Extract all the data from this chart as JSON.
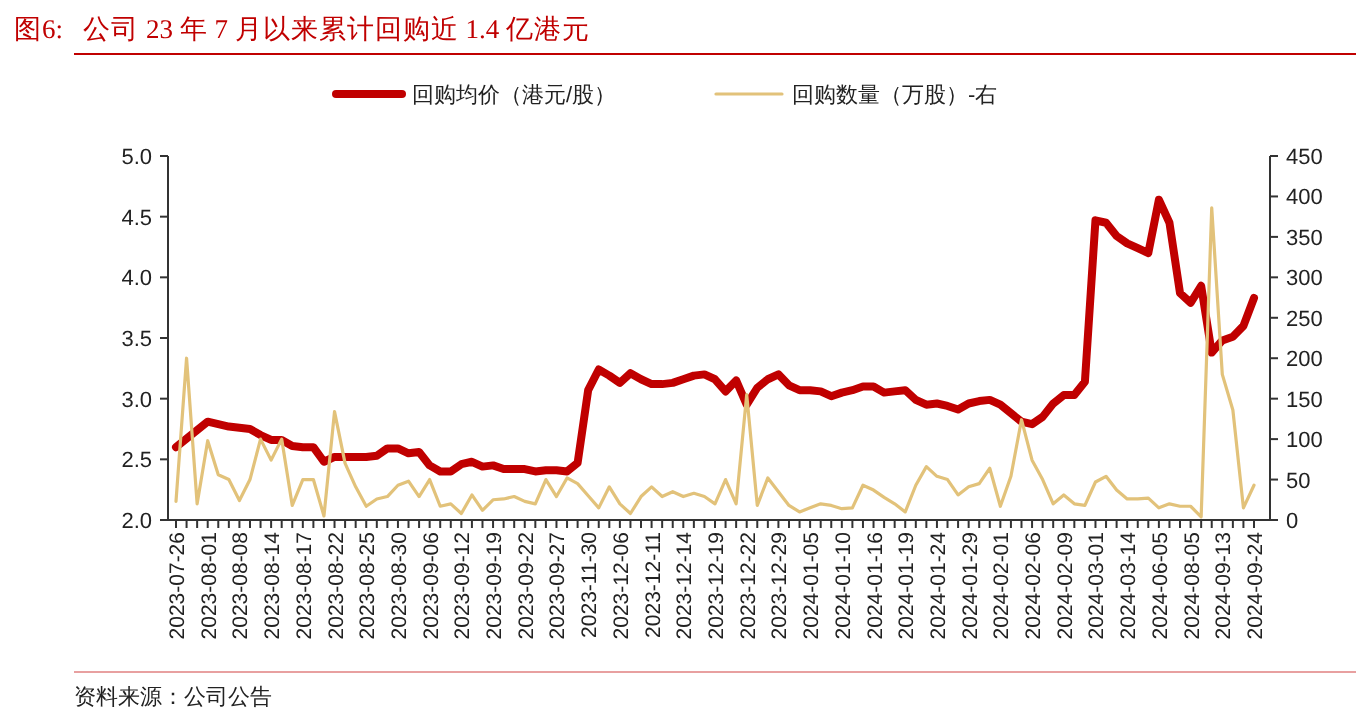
{
  "chart_data": {
    "type": "line",
    "title": "图6:   公司 23 年 7 月以来累计回购近 1.4 亿港元",
    "annotations": [
      "资料来源：公司公告"
    ],
    "categories": [
      "2023-07-26",
      null,
      null,
      "2023-08-01",
      null,
      null,
      "2023-08-08",
      null,
      null,
      "2023-08-14",
      null,
      null,
      "2023-08-17",
      null,
      null,
      "2023-08-22",
      null,
      null,
      "2023-08-25",
      null,
      null,
      "2023-08-30",
      null,
      null,
      "2023-09-06",
      null,
      null,
      "2023-09-12",
      null,
      null,
      "2023-09-19",
      null,
      null,
      "2023-09-22",
      null,
      null,
      "2023-09-27",
      null,
      null,
      "2023-11-30",
      null,
      null,
      "2023-12-06",
      null,
      null,
      "2023-12-11",
      null,
      null,
      "2023-12-14",
      null,
      null,
      "2023-12-19",
      null,
      null,
      "2023-12-22",
      null,
      null,
      "2023-12-29",
      null,
      null,
      "2024-01-05",
      null,
      null,
      "2024-01-10",
      null,
      null,
      "2024-01-16",
      null,
      null,
      "2024-01-19",
      null,
      null,
      "2024-01-24",
      null,
      null,
      "2024-01-29",
      null,
      null,
      "2024-02-01",
      null,
      null,
      "2024-02-06",
      null,
      null,
      "2024-02-09",
      null,
      null,
      "2024-03-01",
      null,
      null,
      "2024-03-14",
      null,
      null,
      "2024-06-05",
      null,
      null,
      "2024-08-05",
      null,
      null,
      "2024-09-13",
      null,
      null,
      "2024-09-24"
    ],
    "series": [
      {
        "name": "回购均价（港元/股）",
        "color": "#c00000",
        "values": [
          2.6,
          2.67,
          2.74,
          2.81,
          2.79,
          2.77,
          2.76,
          2.75,
          2.7,
          2.66,
          2.66,
          2.61,
          2.6,
          2.6,
          2.48,
          2.52,
          2.52,
          2.52,
          2.52,
          2.53,
          2.59,
          2.59,
          2.55,
          2.56,
          2.45,
          2.4,
          2.4,
          2.46,
          2.48,
          2.44,
          2.45,
          2.42,
          2.42,
          2.42,
          2.4,
          2.41,
          2.41,
          2.4,
          2.47,
          3.07,
          3.24,
          3.19,
          3.13,
          3.21,
          3.16,
          3.12,
          3.12,
          3.13,
          3.16,
          3.19,
          3.2,
          3.16,
          3.06,
          3.15,
          2.95,
          3.09,
          3.16,
          3.2,
          3.11,
          3.07,
          3.07,
          3.06,
          3.02,
          3.05,
          3.07,
          3.1,
          3.1,
          3.05,
          3.06,
          3.07,
          2.99,
          2.95,
          2.96,
          2.94,
          2.91,
          2.96,
          2.98,
          2.99,
          2.95,
          2.88,
          2.81,
          2.79,
          2.85,
          2.96,
          3.03,
          3.03,
          3.14,
          4.47,
          4.45,
          4.34,
          4.28,
          4.24,
          4.2,
          4.64,
          4.45,
          3.87,
          3.79,
          3.93,
          3.38,
          3.48,
          3.51,
          3.6,
          3.83
        ]
      },
      {
        "name": "回购数量（万股）-右",
        "color": "#e2c27a",
        "axis": "y2",
        "values": [
          23,
          200,
          20,
          98,
          56,
          50,
          24,
          50,
          100,
          74,
          100,
          18,
          50,
          50,
          5,
          134,
          70,
          41,
          17,
          26,
          29,
          43,
          48,
          29,
          50,
          17,
          20,
          8,
          31,
          12,
          25,
          26,
          29,
          23,
          20,
          50,
          29,
          52,
          45,
          30,
          15,
          41,
          20,
          8,
          29,
          41,
          29,
          35,
          29,
          33,
          29,
          20,
          50,
          20,
          155,
          18,
          52,
          35,
          18,
          10,
          15,
          20,
          18,
          14,
          15,
          43,
          37,
          28,
          20,
          10,
          43,
          66,
          54,
          50,
          31,
          41,
          45,
          64,
          17,
          54,
          124,
          74,
          50,
          20,
          31,
          20,
          18,
          47,
          54,
          37,
          26,
          26,
          27,
          15,
          20,
          17,
          17,
          4,
          386,
          180,
          136,
          15,
          43
        ]
      }
    ],
    "ylim": [
      2.0,
      5.0
    ],
    "yticks": [
      {
        "value": 2,
        "label": "2.0"
      },
      {
        "value": 2.5,
        "label": "2.5"
      },
      {
        "value": 3,
        "label": "3.0"
      },
      {
        "value": 3.5,
        "label": "3.5"
      },
      {
        "value": 4,
        "label": "4.0"
      },
      {
        "value": 4.5,
        "label": "4.5"
      },
      {
        "value": 5,
        "label": "5.0"
      }
    ],
    "y2lim": [
      0,
      450
    ],
    "y2ticks": [
      0,
      50,
      100,
      150,
      200,
      250,
      300,
      350,
      400,
      450
    ],
    "legend": "top",
    "grid": false,
    "marker": "none"
  }
}
